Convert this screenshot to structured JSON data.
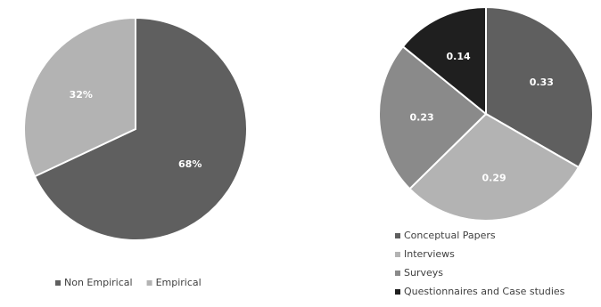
{
  "chart_data": [
    {
      "type": "pie",
      "series": [
        {
          "values": [
            68,
            32
          ],
          "labels": [
            "68%",
            "32%"
          ]
        }
      ],
      "categories": [
        "Non Empirical",
        "Empirical"
      ],
      "colors": [
        "#5f5f5f",
        "#b3b3b3"
      ],
      "legend": "bottom"
    },
    {
      "type": "pie",
      "series": [
        {
          "values": [
            0.33,
            0.29,
            0.23,
            0.14
          ],
          "labels": [
            "0.33",
            "0.29",
            "0.23",
            "0.14"
          ]
        }
      ],
      "categories": [
        "Conceptual Papers",
        "Interviews",
        "Surveys",
        "Questionnaires and Case studies"
      ],
      "colors": [
        "#5f5f5f",
        "#b3b3b3",
        "#8a8a8a",
        "#1f1f1f"
      ],
      "legend": "bottom"
    }
  ]
}
